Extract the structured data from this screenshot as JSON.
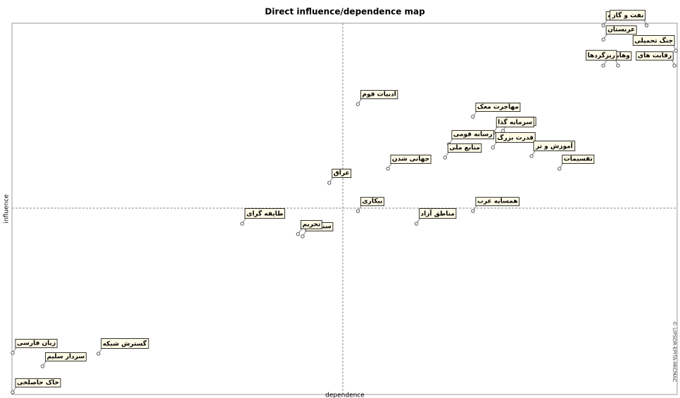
{
  "chart_data": {
    "type": "scatter",
    "title": "Direct influence/dependence map",
    "x_label": "dependence",
    "y_label": "influence",
    "credit": "© LIPSOR-EPITA-MICMAC",
    "xlim": [
      0,
      100
    ],
    "ylim": [
      0,
      100
    ],
    "color": "#555555",
    "labels": [
      "توسعه",
      "نفت و گاز",
      "جنگ تحمیلی",
      "عربستان",
      "وهابیت",
      "ریزگردها",
      "رقابت های",
      "ادبیات قوم",
      "مهاجرت معک",
      "الاهوازیه",
      "سرمایه گذا",
      "رسانه قومی",
      "قدرت بزرگ",
      "آموزش و تر",
      "منابع ملی",
      "تقسیمات",
      "عراق",
      "جهانی شدن",
      "بیکاری",
      "همسایه عرب",
      "مناطق آزاد",
      "طایفه گرای",
      "سنت ها",
      "تحریم",
      "زبان فارسی",
      "گسترش شبکه",
      "سردار سلیم",
      "خاک حاصلخی"
    ],
    "x": [
      88.9,
      95.4,
      99.8,
      88.9,
      88.9,
      91.1,
      99.6,
      52.0,
      69.3,
      73.8,
      72.4,
      65.7,
      72.3,
      78.1,
      65.1,
      82.3,
      47.7,
      56.5,
      52.0,
      69.3,
      60.8,
      34.6,
      43.7,
      43.0,
      0.1,
      13.0,
      4.6,
      0.1
    ],
    "values": [
      99.4,
      99.4,
      92.6,
      95.6,
      88.6,
      88.6,
      88.6,
      78.2,
      74.8,
      71.0,
      70.6,
      67.4,
      66.5,
      64.2,
      63.8,
      60.8,
      57.0,
      60.8,
      49.4,
      49.4,
      46.0,
      46.0,
      42.6,
      43.2,
      11.2,
      11.0,
      7.6,
      0.6
    ]
  }
}
